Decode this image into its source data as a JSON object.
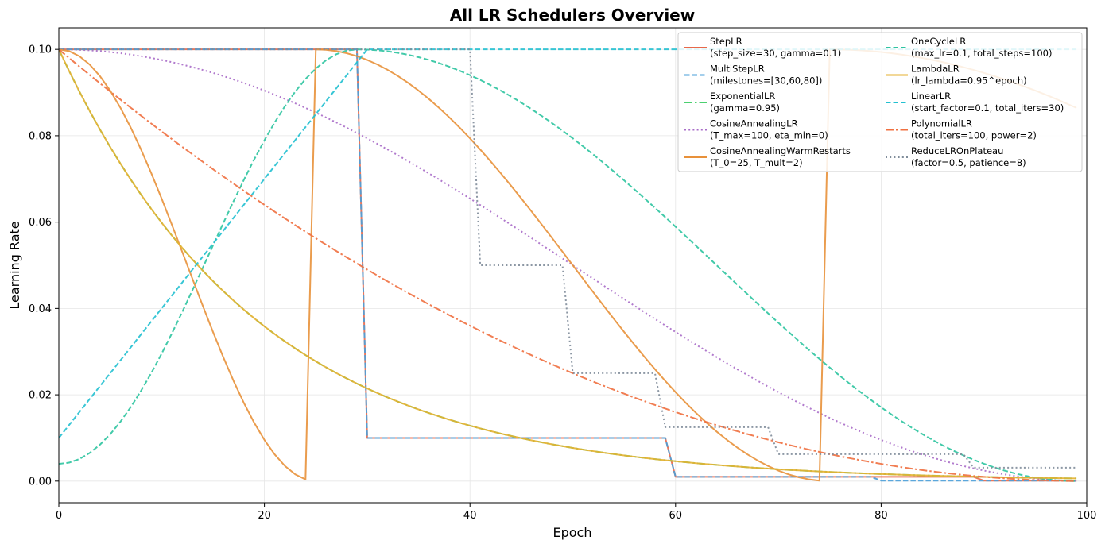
{
  "chart_data": {
    "type": "line",
    "title": "All LR Schedulers Overview",
    "xlabel": "Epoch",
    "ylabel": "Learning Rate",
    "xlim": [
      0,
      100
    ],
    "ylim": [
      -0.005,
      0.105
    ],
    "xticks": [
      0,
      20,
      40,
      60,
      80,
      100
    ],
    "yticks": [
      0.0,
      0.02,
      0.04,
      0.06,
      0.08,
      0.1
    ],
    "xtick_labels": [
      "0",
      "20",
      "40",
      "60",
      "80",
      "100"
    ],
    "ytick_labels": [
      "0.00",
      "0.02",
      "0.04",
      "0.06",
      "0.08",
      "0.10"
    ],
    "grid": true,
    "legend_position": "top-right",
    "legend_columns": 2,
    "epochs": 100,
    "series": [
      {
        "name": "StepLR",
        "params": "(step_size=30, gamma=0.1)",
        "color": "#e8684a",
        "dash": "solid",
        "scheduler": "step",
        "step_size": 30,
        "gamma": 0.1,
        "base_lr": 0.1
      },
      {
        "name": "MultiStepLR",
        "params": "(milestones=[30,60,80])",
        "color": "#4a9fd9",
        "dash": "dashed",
        "scheduler": "multistep",
        "milestones": [
          30,
          60,
          80
        ],
        "gamma": 0.1,
        "base_lr": 0.1
      },
      {
        "name": "ExponentialLR",
        "params": "(gamma=0.95)",
        "color": "#4cd070",
        "dash": "dashdot",
        "scheduler": "exponential",
        "gamma": 0.95,
        "base_lr": 0.1
      },
      {
        "name": "CosineAnnealingLR",
        "params": "(T_max=100, eta_min=0)",
        "color": "#a86cc8",
        "dash": "dotted",
        "scheduler": "cosine",
        "T_max": 100,
        "eta_min": 0,
        "base_lr": 0.1
      },
      {
        "name": "CosineAnnealingWarmRestarts",
        "params": "(T_0=25, T_mult=2)",
        "color": "#e8913a",
        "dash": "solid",
        "scheduler": "warm_restarts",
        "T_0": 25,
        "T_mult": 2,
        "base_lr": 0.1
      },
      {
        "name": "OneCycleLR",
        "params": "(max_lr=0.1, total_steps=100)",
        "color": "#2ec4a0",
        "dash": "dashed",
        "scheduler": "onecycle",
        "max_lr": 0.1,
        "total_steps": 100,
        "pct_start": 0.3,
        "div_factor": 25,
        "final_div_factor": 10000
      },
      {
        "name": "LambdaLR",
        "params": "(lr_lambda=0.95^epoch)",
        "color": "#e6b030",
        "dash": "solid",
        "scheduler": "exponential",
        "gamma": 0.95,
        "base_lr": 0.1
      },
      {
        "name": "LinearLR",
        "params": "(start_factor=0.1, total_iters=30)",
        "color": "#22c0d0",
        "dash": "dashed",
        "scheduler": "linear",
        "start_factor": 0.1,
        "total_iters": 30,
        "base_lr": 0.1
      },
      {
        "name": "PolynomialLR",
        "params": "(total_iters=100, power=2)",
        "color": "#f07040",
        "dash": "dashdot",
        "scheduler": "polynomial",
        "total_iters": 100,
        "power": 2,
        "base_lr": 0.1
      },
      {
        "name": "ReduceLROnPlateau",
        "params": "(factor=0.5, patience=8)",
        "color": "#7f8c9a",
        "dash": "dotted",
        "scheduler": "plateau",
        "drops": [
          41,
          50,
          59,
          70,
          89
        ],
        "factor": 0.5,
        "base_lr": 0.1
      }
    ]
  }
}
